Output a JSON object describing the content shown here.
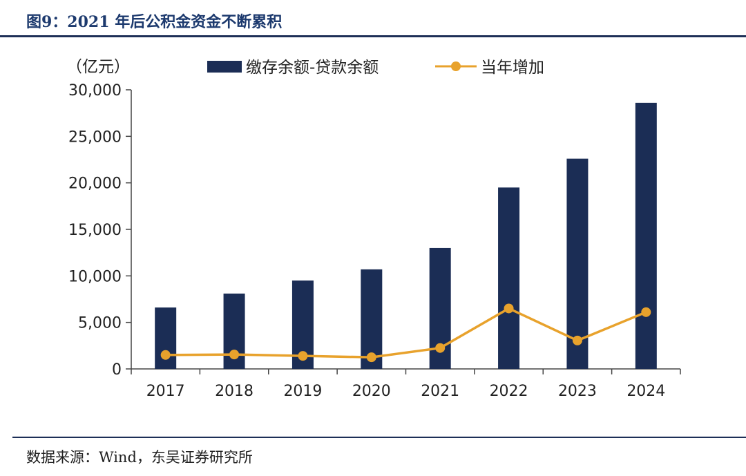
{
  "header": {
    "title": "图9：2021 年后公积金资金不断累积"
  },
  "footer": {
    "source": "数据来源：Wind，东吴证券研究所"
  },
  "colors": {
    "bar": "#1b2d55",
    "line": "#e8a22c",
    "axis": "#444444",
    "rule": "#1d2f57"
  },
  "chart_data": {
    "type": "bar+line",
    "title": "图9：2021 年后公积金资金不断累积",
    "unit_label": "（亿元）",
    "categories": [
      "2017",
      "2018",
      "2019",
      "2020",
      "2021",
      "2022",
      "2023",
      "2024"
    ],
    "series": [
      {
        "name": "缴存余额-贷款余额",
        "type": "bar",
        "values": [
          6600,
          8100,
          9500,
          10700,
          13000,
          19500,
          22600,
          28600
        ]
      },
      {
        "name": "当年增加",
        "type": "line",
        "values": [
          1500,
          1550,
          1400,
          1250,
          2250,
          6500,
          3050,
          6100
        ]
      }
    ],
    "ylim": [
      0,
      30000
    ],
    "yticks": [
      0,
      5000,
      10000,
      15000,
      20000,
      25000,
      30000
    ],
    "ytick_labels": [
      "0",
      "5,000",
      "10,000",
      "15,000",
      "20,000",
      "25,000",
      "30,000"
    ],
    "legend_position": "top",
    "grid": false
  }
}
